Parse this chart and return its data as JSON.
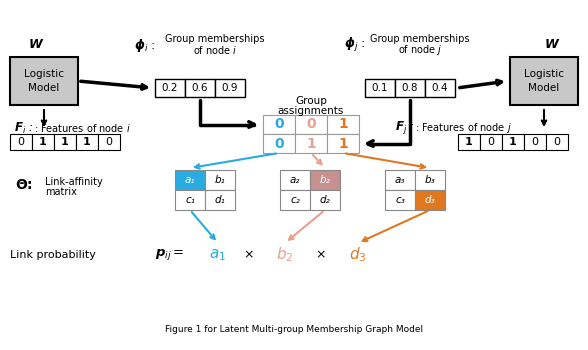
{
  "bg_color": "#ffffff",
  "logistic_box_color": "#c8c8c8",
  "phi_i_values": [
    "0.2",
    "0.6",
    "0.9"
  ],
  "phi_j_values": [
    "0.1",
    "0.8",
    "0.4"
  ],
  "Fi_values": [
    "0",
    "1",
    "1",
    "1",
    "0"
  ],
  "Fj_values": [
    "1",
    "0",
    "1",
    "0",
    "0"
  ],
  "group_assign_row1": [
    "0",
    "0",
    "1"
  ],
  "group_assign_row2": [
    "0",
    "1",
    "1"
  ],
  "group_assign_colors": [
    "#29abe2",
    "#e8a090",
    "#e07820"
  ],
  "cyan_color": "#29abe2",
  "pink_color": "#e8a090",
  "orange_color": "#e07820",
  "theta_matrix1": [
    [
      "a₁",
      "b₁"
    ],
    [
      "c₁",
      "d₁"
    ]
  ],
  "theta_matrix2": [
    [
      "a₂",
      "b₂"
    ],
    [
      "c₂",
      "d₂"
    ]
  ],
  "theta_matrix3": [
    [
      "a₃",
      "b₃"
    ],
    [
      "c₃",
      "d₃"
    ]
  ],
  "theta_hl_color1": "#29abe2",
  "theta_hl_color2": "#c89090",
  "theta_hl_color3": "#e07820",
  "caption": "Figure 1 for Latent Multi-group Membership Graph Model"
}
